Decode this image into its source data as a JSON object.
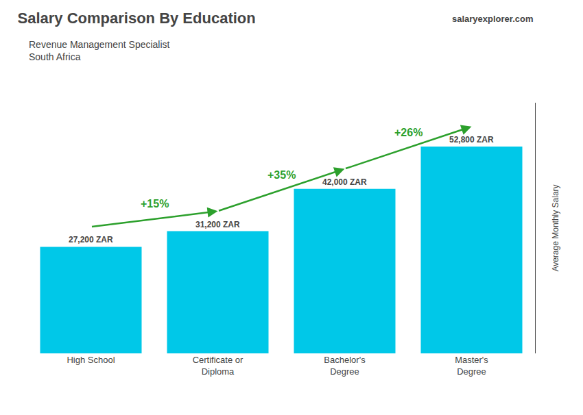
{
  "chart_data": {
    "type": "bar",
    "title": "Salary Comparison By Education",
    "subtitle": [
      "Revenue Management Specialist",
      "South Africa"
    ],
    "source": "salaryexplorer.com",
    "ylabel": "Average Monthly Salary",
    "categories": [
      "High School",
      "Certificate or\nDiploma",
      "Bachelor's\nDegree",
      "Master's\nDegree"
    ],
    "values": [
      27200,
      31200,
      42000,
      52800
    ],
    "value_labels": [
      "27,200 ZAR",
      "31,200 ZAR",
      "42,000 ZAR",
      "52,800 ZAR"
    ],
    "data_labels": true,
    "annotations": [
      "+15%",
      "+35%",
      "+26%"
    ],
    "color": "#00c8e8",
    "ylim": [
      0,
      64000
    ],
    "grid": false,
    "tick_labels": "x"
  }
}
